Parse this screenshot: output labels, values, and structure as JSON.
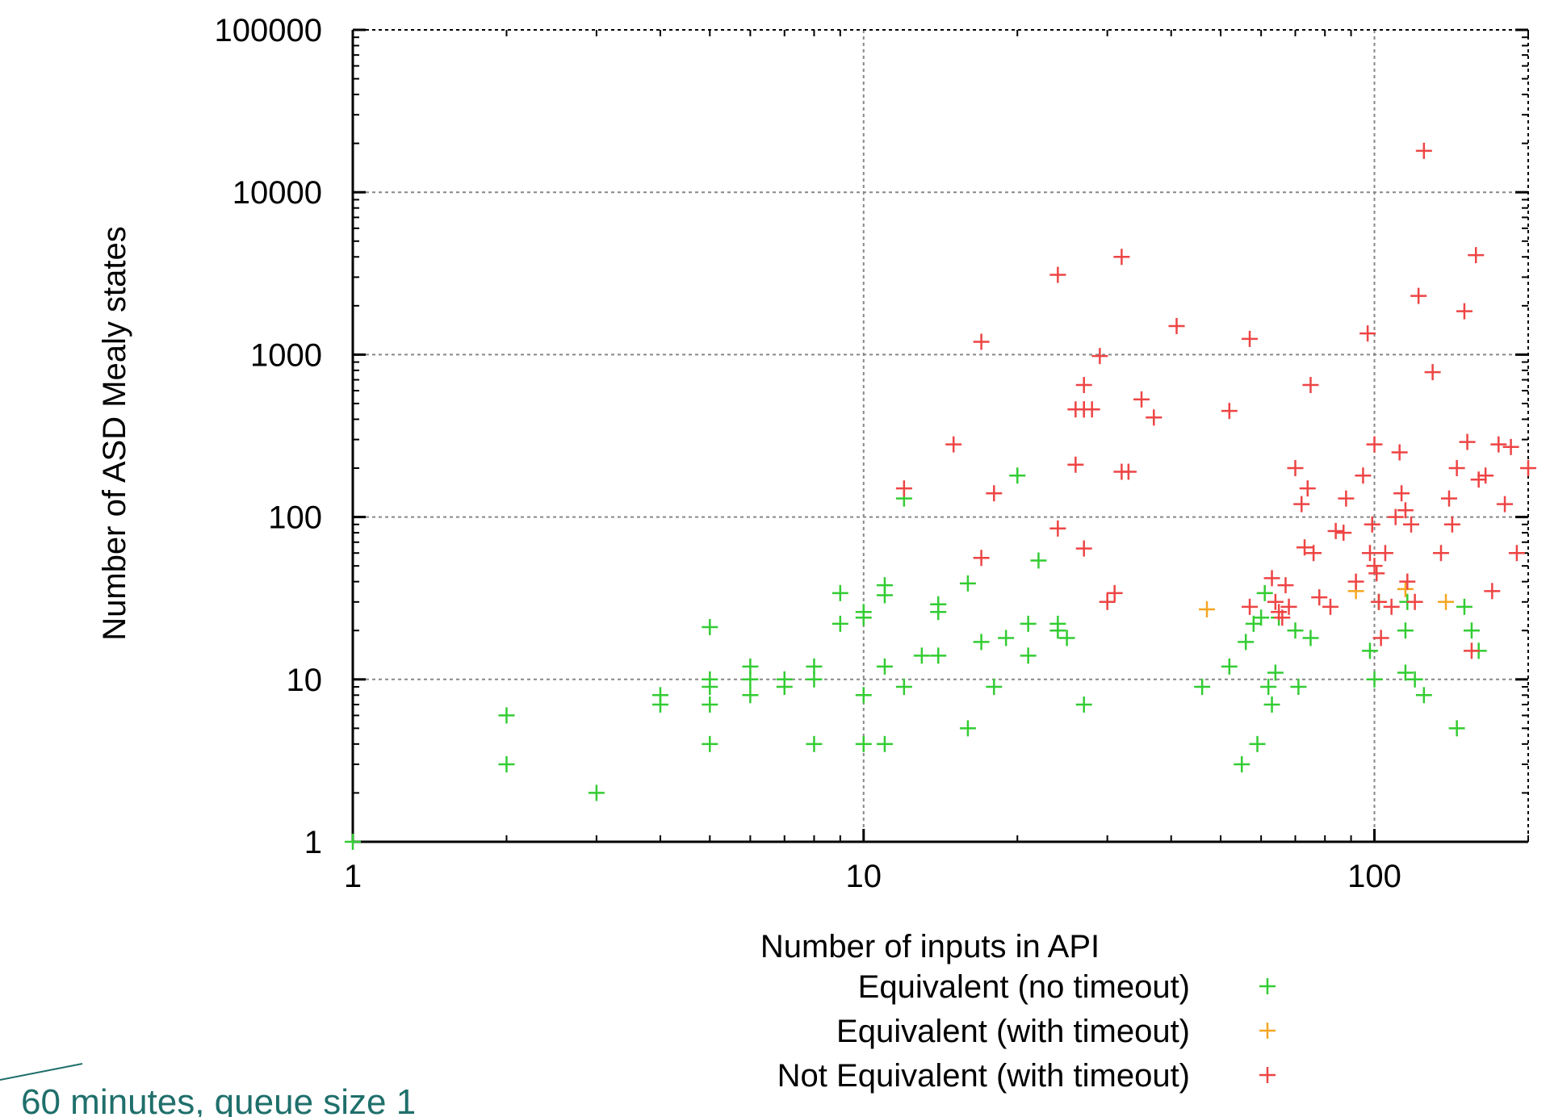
{
  "caption": "60 minutes, queue size 1",
  "chart_data": {
    "type": "scatter",
    "title": "",
    "xlabel": "Number of inputs in API",
    "ylabel": "Number of ASD Mealy states",
    "xscale": "log",
    "yscale": "log",
    "xlim": [
      1,
      200
    ],
    "ylim": [
      1,
      100000
    ],
    "xticks": [
      1,
      10,
      100
    ],
    "xtick_labels": [
      "1",
      "10",
      "100"
    ],
    "yticks": [
      1,
      10,
      100,
      1000,
      10000,
      100000
    ],
    "ytick_labels": [
      "1",
      "10",
      "100",
      "1000",
      "10000",
      "100000"
    ],
    "grid": true,
    "legend_position": "below-right",
    "colors": {
      "green": "#33cc33",
      "orange": "#f5a623",
      "red": "#ee4444"
    },
    "series": [
      {
        "name": "Equivalent (no timeout)",
        "color": "#33cc33",
        "marker": "+",
        "x": [
          1,
          2,
          2,
          3,
          4,
          4,
          5,
          5,
          5,
          5,
          5,
          6,
          6,
          6,
          7,
          7,
          8,
          8,
          8,
          9,
          9,
          10,
          10,
          10,
          10,
          11,
          11,
          11,
          11,
          12,
          12,
          13,
          14,
          14,
          14,
          16,
          16,
          17,
          18,
          19,
          20,
          21,
          21,
          22,
          24,
          24,
          25,
          27,
          46,
          52,
          55,
          56,
          58,
          59,
          60,
          61,
          62,
          63,
          64,
          65,
          70,
          71,
          75,
          98,
          100,
          102,
          115,
          115,
          116,
          120,
          125,
          145,
          150,
          155,
          160
        ],
        "y": [
          1,
          6,
          3,
          2,
          8,
          7,
          21,
          10,
          9,
          7,
          4,
          12,
          10,
          8,
          10,
          9,
          12,
          10,
          4,
          34,
          22,
          26,
          24,
          8,
          4,
          38,
          33,
          12,
          4,
          130,
          9,
          14,
          29,
          26,
          14,
          39,
          5,
          17,
          9,
          18,
          180,
          22,
          14,
          54,
          22,
          20,
          18,
          7,
          9,
          12,
          3,
          17,
          22,
          4,
          24,
          34,
          9,
          7,
          11,
          24,
          20,
          9,
          18,
          15,
          10,
          30,
          20,
          11,
          30,
          10,
          8,
          5,
          28,
          20,
          15
        ]
      },
      {
        "name": "Equivalent (with timeout)",
        "color": "#f5a623",
        "marker": "+",
        "x": [
          47,
          92,
          115,
          138
        ],
        "y": [
          27,
          35,
          36,
          30
        ]
      },
      {
        "name": "Not Equivalent (with timeout)",
        "color": "#ee4444",
        "marker": "+",
        "x": [
          12,
          15,
          17,
          17,
          18,
          24,
          24,
          26,
          26,
          27,
          27,
          27,
          27,
          28,
          29,
          30,
          31,
          32,
          32,
          33,
          35,
          37,
          41,
          52,
          57,
          57,
          63,
          64,
          65,
          66,
          67,
          68,
          70,
          72,
          73,
          74,
          75,
          76,
          78,
          82,
          84,
          87,
          88,
          92,
          95,
          97,
          98,
          99,
          100,
          100,
          101,
          102,
          103,
          105,
          108,
          110,
          112,
          113,
          115,
          116,
          118,
          120,
          122,
          125,
          130,
          135,
          140,
          142,
          145,
          150,
          152,
          155,
          158,
          160,
          165,
          170,
          175,
          180,
          185,
          190,
          200
        ],
        "y": [
          150,
          280,
          1200,
          56,
          140,
          3100,
          85,
          460,
          210,
          460,
          650,
          64,
          460,
          460,
          980,
          30,
          34,
          190,
          4000,
          190,
          530,
          410,
          1500,
          450,
          28,
          1250,
          42,
          30,
          26,
          24,
          38,
          28,
          200,
          120,
          65,
          150,
          650,
          60,
          32,
          28,
          82,
          80,
          130,
          40,
          180,
          1350,
          60,
          90,
          280,
          50,
          45,
          30,
          18,
          60,
          28,
          100,
          250,
          140,
          110,
          40,
          90,
          30,
          2300,
          18000,
          780,
          60,
          130,
          90,
          200,
          1850,
          290,
          15,
          4100,
          170,
          180,
          35,
          280,
          120,
          270,
          60,
          200
        ]
      }
    ]
  }
}
